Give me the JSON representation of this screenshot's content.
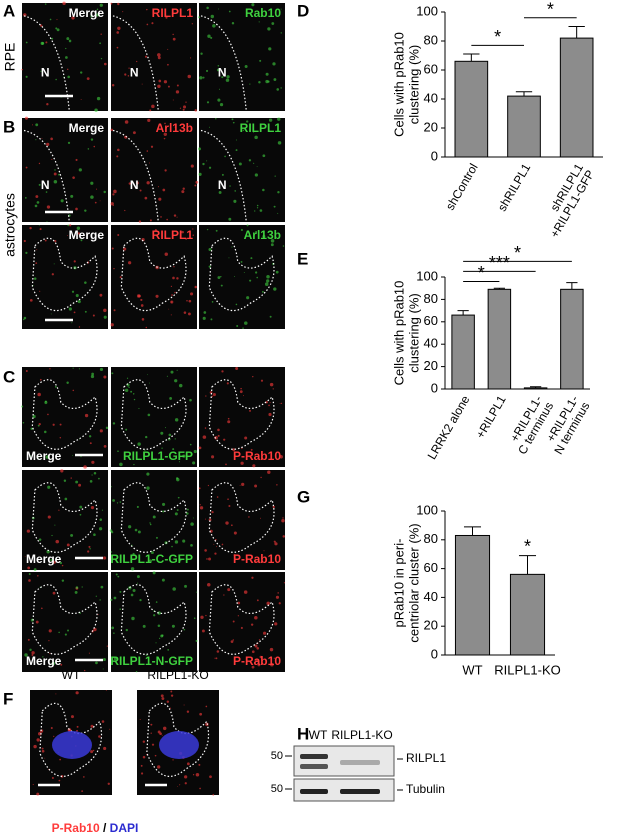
{
  "panel_letters": [
    "A",
    "B",
    "C",
    "D",
    "E",
    "F",
    "G",
    "H"
  ],
  "A": {
    "side": "RPE",
    "channels": [
      "Merge",
      "RILPL1",
      "Rab10"
    ],
    "nucleus": "N"
  },
  "B": {
    "side": "astrocytes",
    "rows": [
      [
        "Merge",
        "Arl13b",
        "RILPL1"
      ],
      [
        "Merge",
        "RILPL1",
        "Arl13b"
      ]
    ],
    "nucleus": "N"
  },
  "C": {
    "rows": [
      [
        "Merge",
        "RILPL1-GFP",
        "P-Rab10"
      ],
      [
        "Merge",
        "RILPL1-C-GFP",
        "P-Rab10"
      ],
      [
        "Merge",
        "RILPL1-N-GFP",
        "P-Rab10"
      ]
    ]
  },
  "F": {
    "conditions": [
      "WT",
      "RILPL1-KO"
    ],
    "stain": [
      "P-Rab10",
      "/",
      "DAPI"
    ]
  },
  "H": {
    "lanes": [
      "WT",
      "RILPL1-KO"
    ],
    "markers": [
      "50",
      "50"
    ],
    "bands": [
      "RILPL1",
      "Tubulin"
    ]
  },
  "chart_data": [
    {
      "type": "bar",
      "ylabel": [
        "Cells with pRab10",
        "clustering (%)"
      ],
      "categories": [
        [
          "shControl"
        ],
        [
          "shRILPL1"
        ],
        [
          "shRILPL1",
          "+RILPL1-GFP"
        ]
      ],
      "values": [
        66,
        42,
        82
      ],
      "errors": [
        5,
        3,
        8
      ],
      "color": "#8c8c8c",
      "ylim": [
        0,
        100
      ],
      "yticks": [
        0,
        20,
        40,
        60,
        80,
        100
      ],
      "significance": [
        {
          "from": 0,
          "to": 1,
          "label": "*"
        },
        {
          "from": 1,
          "to": 2,
          "label": "*"
        }
      ]
    },
    {
      "type": "bar",
      "ylabel": [
        "Cells with pRab10",
        "clustering (%)"
      ],
      "categories": [
        [
          "LRRK2 alone"
        ],
        [
          "+RILPL1"
        ],
        [
          "+RILPL1-",
          "C terminus"
        ],
        [
          "+RILPL1-",
          "N terminus"
        ]
      ],
      "values": [
        66,
        89,
        1,
        89
      ],
      "errors": [
        4,
        1,
        1,
        6
      ],
      "color": "#8c8c8c",
      "ylim": [
        0,
        100
      ],
      "yticks": [
        0,
        20,
        40,
        60,
        80,
        100
      ],
      "significance": [
        {
          "from": 0,
          "to": 1,
          "label": "*"
        },
        {
          "from": 0,
          "to": 2,
          "label": "***"
        },
        {
          "from": 0,
          "to": 3,
          "label": "*"
        }
      ]
    },
    {
      "type": "bar",
      "ylabel": [
        "pRab10 in peri-",
        "centriolar cluster (%)"
      ],
      "categories": [
        [
          "WT"
        ],
        [
          "RILPL1-KO"
        ]
      ],
      "values": [
        83,
        56
      ],
      "errors": [
        6,
        13
      ],
      "color": "#8c8c8c",
      "ylim": [
        0,
        100
      ],
      "yticks": [
        0,
        20,
        40,
        60,
        80,
        100
      ],
      "significance": [
        {
          "from": 1,
          "to": 1,
          "label": "*"
        }
      ]
    }
  ]
}
